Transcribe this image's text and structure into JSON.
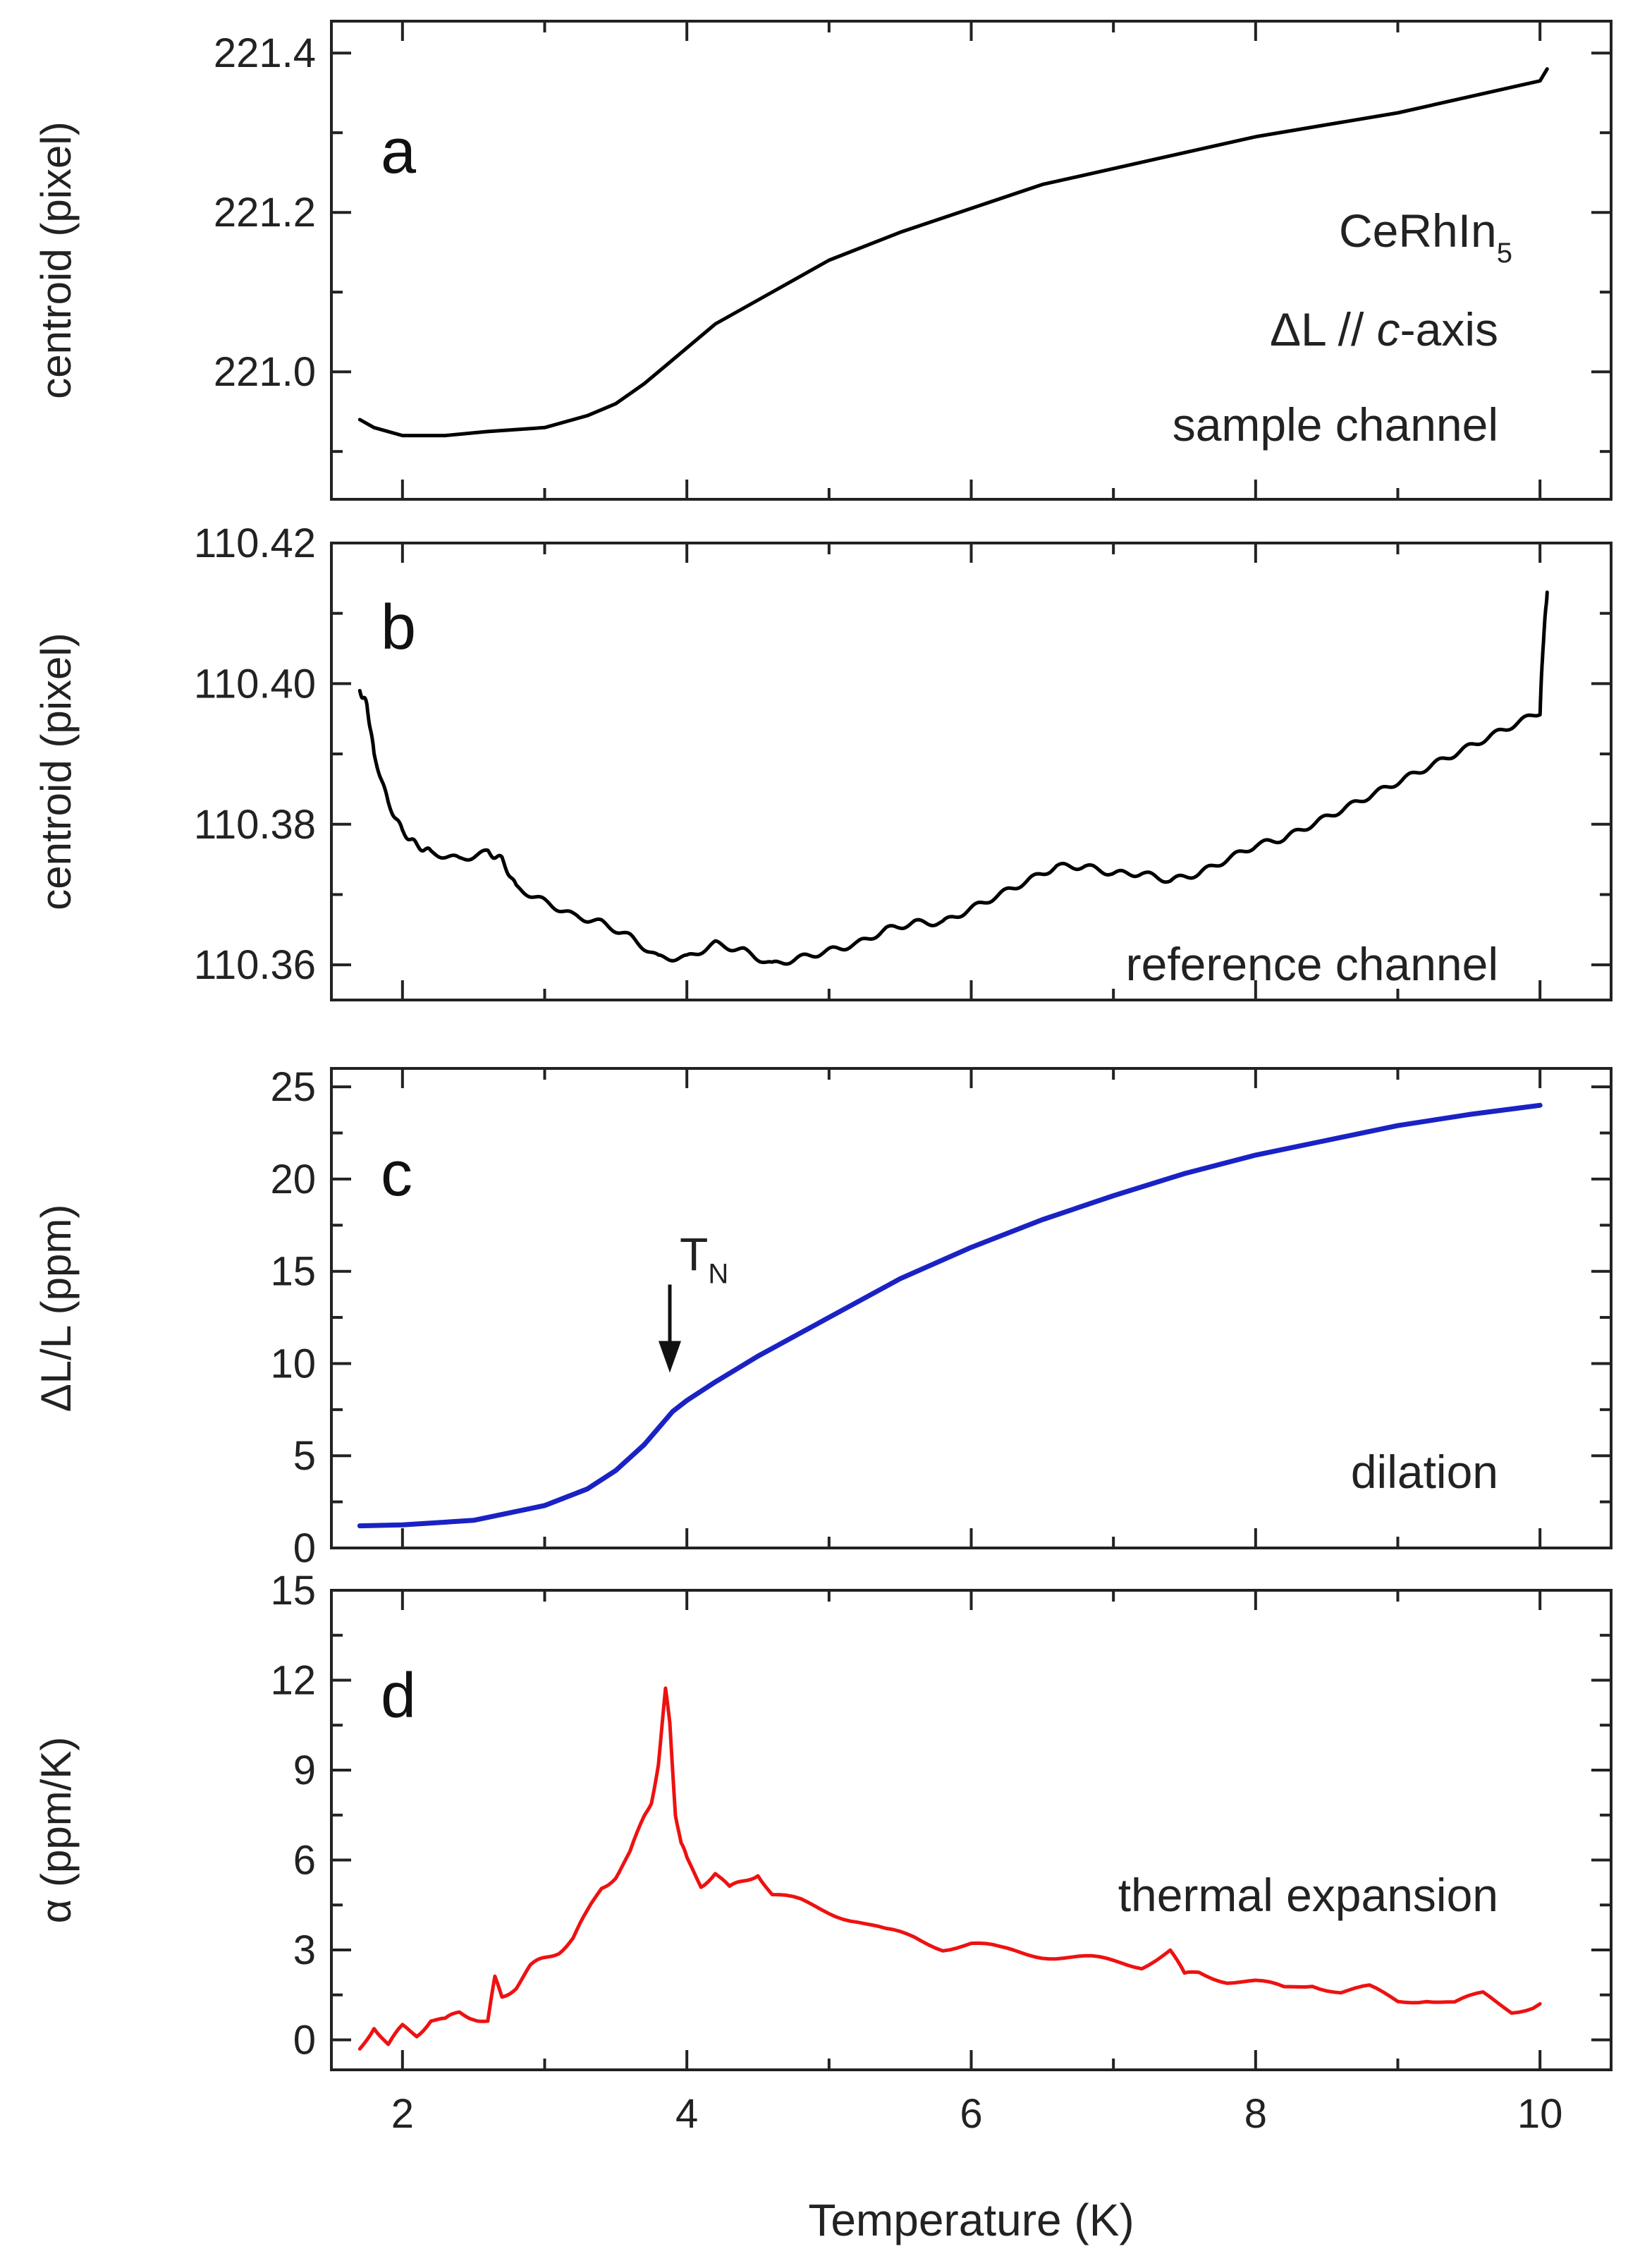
{
  "chart_data": [
    {
      "type": "line",
      "panel_letter": "a",
      "ylabel": "centroid (pixel)",
      "xlim": [
        1.5,
        10.5
      ],
      "ylim": [
        220.84,
        221.44
      ],
      "yticks": [
        221.0,
        221.2,
        221.4
      ],
      "ytick_labels": [
        "221.0",
        "221.2",
        "221.4"
      ],
      "grid": false,
      "annotations": [
        {
          "text": "CeRhIn",
          "sub": "5"
        },
        {
          "text": "ΔL // c-axis"
        },
        {
          "text": "sample channel"
        }
      ],
      "series": [
        {
          "color": "#000000",
          "x": [
            1.7,
            1.8,
            2.0,
            2.3,
            2.6,
            3.0,
            3.3,
            3.5,
            3.7,
            3.9,
            4.0,
            4.2,
            4.5,
            5.0,
            5.5,
            6.0,
            6.5,
            7.0,
            7.5,
            8.0,
            8.5,
            9.0,
            9.5,
            10.0,
            10.05
          ],
          "y": [
            220.94,
            220.93,
            220.92,
            220.92,
            220.925,
            220.93,
            220.945,
            220.96,
            220.985,
            221.015,
            221.03,
            221.06,
            221.09,
            221.14,
            221.175,
            221.205,
            221.235,
            221.255,
            221.275,
            221.295,
            221.31,
            221.325,
            221.345,
            221.365,
            221.38
          ]
        }
      ]
    },
    {
      "type": "line",
      "panel_letter": "b",
      "ylabel": "centroid (pixel)",
      "xlim": [
        1.5,
        10.5
      ],
      "ylim": [
        110.355,
        110.42
      ],
      "yticks": [
        110.36,
        110.38,
        110.4,
        110.42
      ],
      "ytick_labels": [
        "110.36",
        "110.38",
        "110.40",
        "110.42"
      ],
      "grid": false,
      "annotations": [
        {
          "text": "reference channel"
        }
      ],
      "series": [
        {
          "color": "#000000",
          "x": [
            1.7,
            1.75,
            1.8,
            1.9,
            2.0,
            2.1,
            2.2,
            2.4,
            2.6,
            2.7,
            2.8,
            3.0,
            3.2,
            3.4,
            3.6,
            3.8,
            4.0,
            4.2,
            4.4,
            4.6,
            4.8,
            5.0,
            5.2,
            5.4,
            5.6,
            5.8,
            6.0,
            6.2,
            6.4,
            6.6,
            6.8,
            7.0,
            7.2,
            7.4,
            7.6,
            7.8,
            8.0,
            8.2,
            8.4,
            8.6,
            8.8,
            9.0,
            9.2,
            9.4,
            9.6,
            9.8,
            10.0,
            10.02,
            10.05
          ],
          "y": [
            110.399,
            110.397,
            110.39,
            110.383,
            110.379,
            110.377,
            110.376,
            110.375,
            110.376,
            110.375,
            110.371,
            110.369,
            110.367,
            110.366,
            110.364,
            110.361,
            110.361,
            110.363,
            110.362,
            110.36,
            110.361,
            110.362,
            110.363,
            110.365,
            110.366,
            110.366,
            110.368,
            110.37,
            110.372,
            110.374,
            110.374,
            110.373,
            110.373,
            110.372,
            110.373,
            110.375,
            110.377,
            110.378,
            110.38,
            110.382,
            110.384,
            110.386,
            110.388,
            110.39,
            110.392,
            110.394,
            110.396,
            110.405,
            110.413
          ]
        }
      ]
    },
    {
      "type": "line",
      "panel_letter": "c",
      "ylabel": "ΔL/L (ppm)",
      "xlim": [
        1.5,
        10.5
      ],
      "ylim": [
        0,
        26
      ],
      "yticks": [
        0,
        5,
        10,
        15,
        20,
        25
      ],
      "ytick_labels": [
        "0",
        "5",
        "10",
        "15",
        "20",
        "25"
      ],
      "grid": false,
      "annotations": [
        {
          "text": "T",
          "sub": "N",
          "arrow_x": 3.9,
          "arrow_y": 9.5
        },
        {
          "text": "dilation"
        }
      ],
      "series": [
        {
          "color": "#1a22c4",
          "x": [
            1.7,
            2.0,
            2.5,
            3.0,
            3.3,
            3.5,
            3.7,
            3.9,
            4.0,
            4.2,
            4.5,
            5.0,
            5.5,
            6.0,
            6.5,
            7.0,
            7.5,
            8.0,
            8.5,
            9.0,
            9.5,
            10.0
          ],
          "y": [
            1.2,
            1.25,
            1.5,
            2.3,
            3.2,
            4.2,
            5.6,
            7.4,
            8.0,
            9.0,
            10.4,
            12.5,
            14.6,
            16.3,
            17.8,
            19.1,
            20.3,
            21.3,
            22.1,
            22.9,
            23.5,
            24.0
          ]
        }
      ]
    },
    {
      "type": "line",
      "panel_letter": "d",
      "ylabel": "α (ppm/K)",
      "xlabel": "Temperature (K)",
      "xlim": [
        1.5,
        10.5
      ],
      "xticks": [
        2,
        4,
        6,
        8,
        10
      ],
      "xtick_labels": [
        "2",
        "4",
        "6",
        "8",
        "10"
      ],
      "ylim": [
        -1,
        15
      ],
      "yticks": [
        0,
        3,
        6,
        9,
        12,
        15
      ],
      "ytick_labels": [
        "0",
        "3",
        "6",
        "9",
        "12",
        "15"
      ],
      "grid": false,
      "annotations": [
        {
          "text": "thermal expansion"
        }
      ],
      "series": [
        {
          "color": "#ee1111",
          "x": [
            1.7,
            1.8,
            1.9,
            2.0,
            2.1,
            2.2,
            2.3,
            2.4,
            2.5,
            2.6,
            2.65,
            2.7,
            2.8,
            2.9,
            3.0,
            3.1,
            3.2,
            3.3,
            3.4,
            3.5,
            3.6,
            3.7,
            3.75,
            3.8,
            3.85,
            3.88,
            3.92,
            3.96,
            4.0,
            4.1,
            4.2,
            4.3,
            4.4,
            4.5,
            4.6,
            4.8,
            5.0,
            5.2,
            5.4,
            5.6,
            5.8,
            6.0,
            6.2,
            6.4,
            6.6,
            6.8,
            7.0,
            7.2,
            7.4,
            7.5,
            7.6,
            7.8,
            8.0,
            8.2,
            8.4,
            8.6,
            8.8,
            9.0,
            9.2,
            9.4,
            9.6,
            9.8,
            10.0
          ],
          "y": [
            -0.3,
            0.5,
            -0.2,
            0.4,
            0.2,
            0.7,
            0.6,
            0.9,
            0.8,
            0.6,
            2.0,
            1.5,
            1.8,
            2.4,
            2.7,
            3.0,
            3.4,
            4.2,
            5.1,
            5.5,
            6.2,
            7.4,
            8.0,
            9.2,
            11.6,
            10.6,
            7.6,
            6.5,
            6.0,
            5.2,
            5.6,
            5.0,
            5.3,
            5.6,
            4.8,
            4.6,
            4.3,
            4.0,
            3.6,
            3.4,
            3.1,
            3.2,
            3.0,
            2.9,
            2.8,
            2.7,
            2.6,
            2.5,
            3.0,
            2.1,
            2.3,
            2.0,
            1.9,
            1.7,
            1.9,
            1.6,
            1.7,
            1.3,
            1.4,
            1.2,
            1.5,
            1.0,
            1.2
          ]
        }
      ]
    }
  ]
}
